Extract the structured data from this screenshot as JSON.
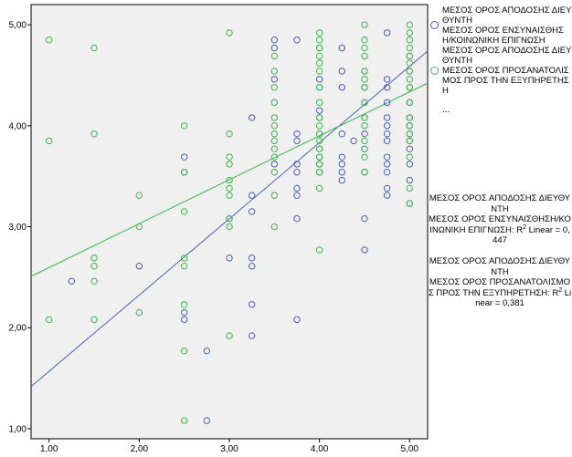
{
  "chart_data": {
    "type": "scatter",
    "title": "",
    "xlabel": "",
    "ylabel": "",
    "xlim": [
      0.8,
      5.2
    ],
    "ylim": [
      0.9,
      5.2
    ],
    "x_ticks": [
      "1,00",
      "2,00",
      "3,00",
      "4,00",
      "5,00"
    ],
    "y_ticks": [
      "1,00",
      "2,00",
      "3,00",
      "4,00",
      "5,00"
    ],
    "grid": false,
    "legend_position": "right",
    "series": [
      {
        "name": "ΜΕΣΟΣ ΟΡΟΣ ΑΠΟΔΟΣΗΣ ΔΙΕΥΘΥΝΤΗ  ΜΕΣΟΣ ΟΡΟΣ ΕΝΣΥΝΑΙΣΘΗΣΗ/ΚΟΙΝΩΝΙΚΗ ΕΠΙΓΝΩΣΗ",
        "color": "#4a5fb0",
        "fit": {
          "slope": 0.755,
          "intercept": 0.813
        },
        "points": [
          [
            1.25,
            2.46
          ],
          [
            2.0,
            2.61
          ],
          [
            2.5,
            3.69
          ],
          [
            2.5,
            3.54
          ],
          [
            2.5,
            2.15
          ],
          [
            2.5,
            2.08
          ],
          [
            2.75,
            1.77
          ],
          [
            2.75,
            1.08
          ],
          [
            3.0,
            2.69
          ],
          [
            3.0,
            3.08
          ],
          [
            3.25,
            4.08
          ],
          [
            3.25,
            3.31
          ],
          [
            3.25,
            3.15
          ],
          [
            3.25,
            2.69
          ],
          [
            3.25,
            2.61
          ],
          [
            3.25,
            2.23
          ],
          [
            3.25,
            1.92
          ],
          [
            3.5,
            4.85
          ],
          [
            3.5,
            4.77
          ],
          [
            3.5,
            4.46
          ],
          [
            3.5,
            3.62
          ],
          [
            3.75,
            4.85
          ],
          [
            3.75,
            3.92
          ],
          [
            3.75,
            3.85
          ],
          [
            3.75,
            3.62
          ],
          [
            3.75,
            3.54
          ],
          [
            3.75,
            3.38
          ],
          [
            3.75,
            3.31
          ],
          [
            3.75,
            3.08
          ],
          [
            3.75,
            2.08
          ],
          [
            4.0,
            4.77
          ],
          [
            4.0,
            4.46
          ],
          [
            4.0,
            4.38
          ],
          [
            4.0,
            4.15
          ],
          [
            4.0,
            4.08
          ],
          [
            4.0,
            3.92
          ],
          [
            4.0,
            3.77
          ],
          [
            4.0,
            3.69
          ],
          [
            4.0,
            3.62
          ],
          [
            4.0,
            3.54
          ],
          [
            4.25,
            4.77
          ],
          [
            4.25,
            4.54
          ],
          [
            4.25,
            4.38
          ],
          [
            4.25,
            3.92
          ],
          [
            4.25,
            3.69
          ],
          [
            4.25,
            3.62
          ],
          [
            4.25,
            3.54
          ],
          [
            4.25,
            3.46
          ],
          [
            4.38,
            3.85
          ],
          [
            4.5,
            4.54
          ],
          [
            4.5,
            4.38
          ],
          [
            4.5,
            4.23
          ],
          [
            4.5,
            4.08
          ],
          [
            4.5,
            3.92
          ],
          [
            4.5,
            3.77
          ],
          [
            4.5,
            3.54
          ],
          [
            4.5,
            3.08
          ],
          [
            4.5,
            2.77
          ],
          [
            4.75,
            4.92
          ],
          [
            4.75,
            4.46
          ],
          [
            4.75,
            4.38
          ],
          [
            4.75,
            4.23
          ],
          [
            4.75,
            4.08
          ],
          [
            4.75,
            4.0
          ],
          [
            4.75,
            3.92
          ],
          [
            4.75,
            3.85
          ],
          [
            4.75,
            3.69
          ],
          [
            4.75,
            3.62
          ],
          [
            4.75,
            3.54
          ],
          [
            4.75,
            3.38
          ],
          [
            4.75,
            3.31
          ],
          [
            5.0,
            4.69
          ],
          [
            5.0,
            4.54
          ],
          [
            5.0,
            4.38
          ],
          [
            5.0,
            4.23
          ],
          [
            5.0,
            4.08
          ],
          [
            5.0,
            4.0
          ],
          [
            5.0,
            3.92
          ],
          [
            5.0,
            3.85
          ],
          [
            5.0,
            3.77
          ],
          [
            5.0,
            3.62
          ],
          [
            5.0,
            3.46
          ],
          [
            5.0,
            3.23
          ]
        ]
      },
      {
        "name": "ΜΕΣΟΣ ΟΡΟΣ ΑΠΟΔΟΣΗΣ ΔΙΕΥΘΥΝΤΗ  ΜΕΣΟΣ ΟΡΟΣ ΠΡΟΣΑΝΑΤΟΛΙΣΜΟΣ ΠΡΟΣ ΤΗΝ ΕΞΥΠΗΡΕΤΗΣΗ",
        "color": "#3cb64a",
        "fit": {
          "slope": 0.435,
          "intercept": 2.16
        },
        "points": [
          [
            1.0,
            4.85
          ],
          [
            1.0,
            3.85
          ],
          [
            1.0,
            2.08
          ],
          [
            1.5,
            4.77
          ],
          [
            1.5,
            3.92
          ],
          [
            1.5,
            2.69
          ],
          [
            1.5,
            2.61
          ],
          [
            1.5,
            2.46
          ],
          [
            1.5,
            2.08
          ],
          [
            2.0,
            3.31
          ],
          [
            2.0,
            3.0
          ],
          [
            2.0,
            2.15
          ],
          [
            2.5,
            4.0
          ],
          [
            2.5,
            3.54
          ],
          [
            2.5,
            3.15
          ],
          [
            2.5,
            2.69
          ],
          [
            2.5,
            2.61
          ],
          [
            2.5,
            2.23
          ],
          [
            2.5,
            1.77
          ],
          [
            2.5,
            1.08
          ],
          [
            3.0,
            4.92
          ],
          [
            3.0,
            3.92
          ],
          [
            3.0,
            3.69
          ],
          [
            3.0,
            3.62
          ],
          [
            3.0,
            3.46
          ],
          [
            3.0,
            3.38
          ],
          [
            3.0,
            3.31
          ],
          [
            3.0,
            3.08
          ],
          [
            3.0,
            3.0
          ],
          [
            3.0,
            1.92
          ],
          [
            3.5,
            4.69
          ],
          [
            3.5,
            4.54
          ],
          [
            3.5,
            4.38
          ],
          [
            3.5,
            4.23
          ],
          [
            3.5,
            4.08
          ],
          [
            3.5,
            4.0
          ],
          [
            3.5,
            3.92
          ],
          [
            3.5,
            3.85
          ],
          [
            3.5,
            3.77
          ],
          [
            3.5,
            3.69
          ],
          [
            3.5,
            3.54
          ],
          [
            3.5,
            3.31
          ],
          [
            3.5,
            3.0
          ],
          [
            4.0,
            4.92
          ],
          [
            4.0,
            4.85
          ],
          [
            4.0,
            4.77
          ],
          [
            4.0,
            4.69
          ],
          [
            4.0,
            4.62
          ],
          [
            4.0,
            4.54
          ],
          [
            4.0,
            4.38
          ],
          [
            4.0,
            4.23
          ],
          [
            4.0,
            4.08
          ],
          [
            4.0,
            4.0
          ],
          [
            4.0,
            3.92
          ],
          [
            4.0,
            3.85
          ],
          [
            4.0,
            3.77
          ],
          [
            4.0,
            3.69
          ],
          [
            4.0,
            3.62
          ],
          [
            4.0,
            3.54
          ],
          [
            4.0,
            3.38
          ],
          [
            4.0,
            2.77
          ],
          [
            4.5,
            5.0
          ],
          [
            4.5,
            4.85
          ],
          [
            4.5,
            4.77
          ],
          [
            4.5,
            4.69
          ],
          [
            4.5,
            4.54
          ],
          [
            4.5,
            4.46
          ],
          [
            4.5,
            4.38
          ],
          [
            4.5,
            4.23
          ],
          [
            4.5,
            4.08
          ],
          [
            4.5,
            4.0
          ],
          [
            4.5,
            3.85
          ],
          [
            4.5,
            3.77
          ],
          [
            4.5,
            3.69
          ],
          [
            4.5,
            3.54
          ],
          [
            5.0,
            5.0
          ],
          [
            5.0,
            4.92
          ],
          [
            5.0,
            4.85
          ],
          [
            5.0,
            4.77
          ],
          [
            5.0,
            4.69
          ],
          [
            5.0,
            4.62
          ],
          [
            5.0,
            4.54
          ],
          [
            5.0,
            4.46
          ],
          [
            5.0,
            4.38
          ],
          [
            5.0,
            4.23
          ],
          [
            5.0,
            4.08
          ],
          [
            5.0,
            4.0
          ],
          [
            5.0,
            3.92
          ],
          [
            5.0,
            3.85
          ],
          [
            5.0,
            3.69
          ],
          [
            5.0,
            3.38
          ],
          [
            5.0,
            3.23
          ]
        ]
      }
    ]
  },
  "legend": {
    "entries": [
      {
        "text": "ΜΕΣΟΣ ΟΡΟΣ ΑΠΟΔΟΣΗΣ ΔΙΕΥΘΥΝΤΗ\n ΜΕΣΟΣ ΟΡΟΣ ΕΝΣΥΝΑΙΣΘΗΣΗ/ΚΟΙΝΩΝΙΚΗ ΕΠΙΓΝΩΣΗ"
      },
      {
        "text": "ΜΕΣΟΣ ΟΡΟΣ ΑΠΟΔΟΣΗΣ ΔΙΕΥΘΥΝΤΗ\n ΜΕΣΟΣ ΟΡΟΣ ΠΡΟΣΑΝΑΤΟΛΙΣΜΟΣ ΠΡΟΣ ΤΗΝ ΕΞΥΠΗΡΕΤΗΣΗ"
      }
    ],
    "more": "..."
  },
  "annotations": {
    "rsq_1_prefix": "ΜΕΣΟΣ ΟΡΟΣ ΑΠΟΔΟΣΗΣ ΔΙΕΥΘΥΝΤΗ\nΜΕΣΟΣ ΟΡΟΣ ΕΝΣΥΝΑΙΣΘΗΣΗ/ΚΟΙΝΩΝΙΚΗ ΕΠΙΓΝΩΣΗ: R",
    "rsq_1_suffix": " Linear = 0,447",
    "rsq_2_prefix": "ΜΕΣΟΣ ΟΡΟΣ ΑΠΟΔΟΣΗΣ ΔΙΕΥΘΥΝΤΗ\nΜΕΣΟΣ ΟΡΟΣ ΠΡΟΣΑΝΑΤΟΛΙΣΜΟΣ ΠΡΟΣ ΤΗΝ ΕΞΥΠΗΡΕΤΗΣΗ: R",
    "rsq_2_suffix": " Linear = 0,381",
    "sup": "2"
  }
}
